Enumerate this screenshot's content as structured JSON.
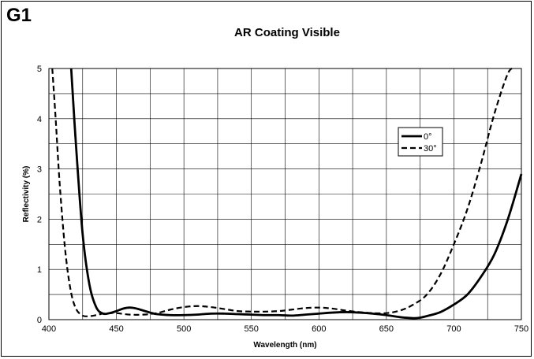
{
  "panel_label": "G1",
  "chart_data": {
    "type": "line",
    "title": "AR Coating Visible",
    "xlabel": "Wavelength (nm)",
    "ylabel": "Reflectivity (%)",
    "xlim": [
      400,
      750
    ],
    "ylim": [
      0,
      5
    ],
    "x_ticks": [
      400,
      450,
      500,
      550,
      600,
      650,
      700,
      750
    ],
    "y_ticks": [
      0,
      1,
      2,
      3,
      4,
      5
    ],
    "grid": true,
    "legend_position": "right",
    "series": [
      {
        "name": "0°",
        "style": "solid",
        "color": "#000000",
        "x": [
          416.5,
          420,
          425,
          430,
          435,
          440,
          445,
          450,
          455,
          460,
          465,
          470,
          475,
          480,
          490,
          500,
          510,
          520,
          530,
          540,
          550,
          560,
          570,
          580,
          590,
          600,
          610,
          620,
          630,
          640,
          650,
          660,
          670,
          675,
          680,
          690,
          700,
          710,
          720,
          730,
          740,
          750
        ],
        "y": [
          5.0,
          3.5,
          1.7,
          0.7,
          0.25,
          0.12,
          0.13,
          0.17,
          0.22,
          0.24,
          0.22,
          0.18,
          0.14,
          0.11,
          0.09,
          0.09,
          0.1,
          0.12,
          0.12,
          0.11,
          0.1,
          0.09,
          0.09,
          0.08,
          0.1,
          0.12,
          0.14,
          0.15,
          0.14,
          0.12,
          0.09,
          0.05,
          0.03,
          0.04,
          0.07,
          0.15,
          0.3,
          0.5,
          0.85,
          1.3,
          2.0,
          2.9
        ]
      },
      {
        "name": "30°",
        "style": "dashed",
        "color": "#000000",
        "x": [
          402.5,
          405,
          408,
          412,
          416,
          420,
          425,
          430,
          435,
          440,
          445,
          450,
          460,
          470,
          480,
          490,
          500,
          510,
          520,
          530,
          540,
          550,
          560,
          570,
          580,
          590,
          600,
          610,
          620,
          630,
          640,
          650,
          660,
          670,
          680,
          690,
          700,
          710,
          720,
          730,
          740,
          745
        ],
        "y": [
          5.0,
          4.0,
          2.7,
          1.4,
          0.6,
          0.22,
          0.08,
          0.07,
          0.09,
          0.12,
          0.13,
          0.13,
          0.1,
          0.1,
          0.13,
          0.2,
          0.25,
          0.27,
          0.25,
          0.21,
          0.17,
          0.16,
          0.16,
          0.17,
          0.2,
          0.23,
          0.24,
          0.22,
          0.18,
          0.15,
          0.13,
          0.13,
          0.18,
          0.3,
          0.5,
          0.9,
          1.5,
          2.2,
          3.1,
          4.1,
          4.9,
          5.0
        ]
      }
    ]
  }
}
